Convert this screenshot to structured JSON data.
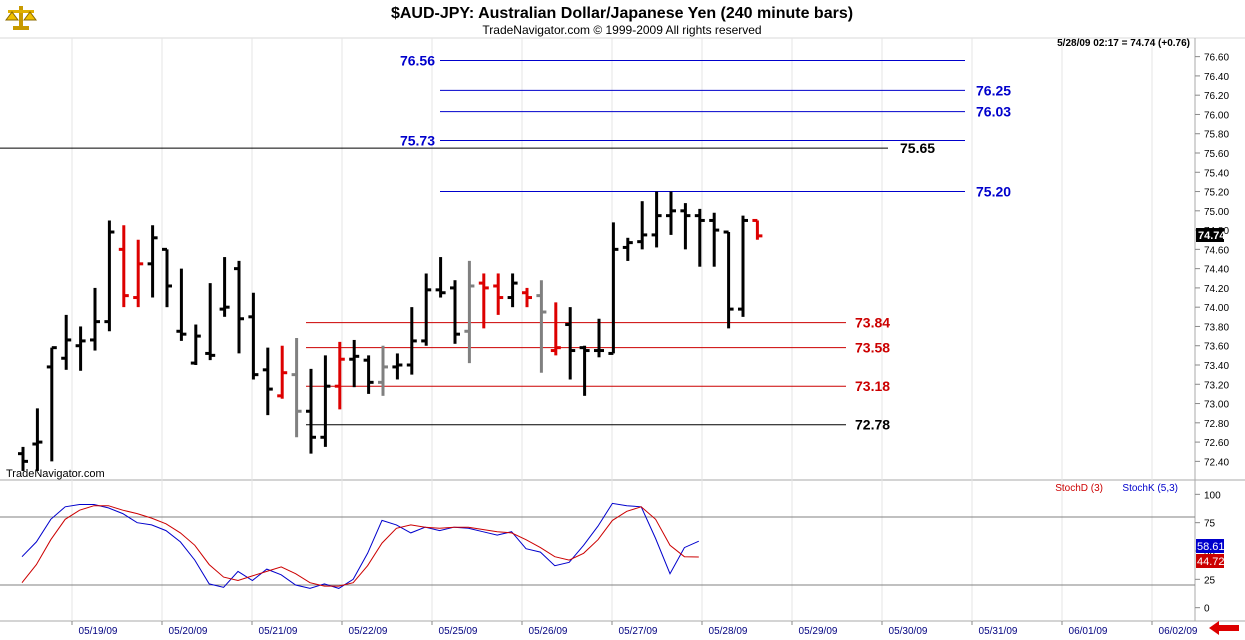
{
  "title": "$AUD-JPY:  Australian Dollar/Japanese Yen  (240 minute bars)",
  "copyright": "TradeNavigator.com © 1999-2009 All rights reserved",
  "watermark": "TradeNavigator.com",
  "last_quote": "5/28/09 02:17 = 74.74 (+0.76)",
  "price_tag": "74.74",
  "colors": {
    "up": "#000000",
    "down": "#dd0000",
    "neutral": "#808080",
    "level_blue": "#0000cc",
    "level_red": "#cc0000",
    "stoch_k": "#0000cc",
    "stoch_d": "#cc0000"
  },
  "chart_data": [
    {
      "type": "ohlc",
      "title": "$AUD-JPY:  Australian Dollar/Japanese Yen  (240 minute bars)",
      "ylim": [
        72.3,
        76.7
      ],
      "y_ticks": [
        76.6,
        76.4,
        76.2,
        76.0,
        75.8,
        75.6,
        75.4,
        75.2,
        75.0,
        74.8,
        74.6,
        74.4,
        74.2,
        74.0,
        73.8,
        73.6,
        73.4,
        73.2,
        73.0,
        72.8,
        72.6,
        72.4
      ],
      "y_tick_labels": [
        "76.60",
        "76.40",
        "76.20",
        "76.00",
        "75.80",
        "75.60",
        "75.40",
        "75.20",
        "75.00",
        "74.80",
        "74.60",
        "74.40",
        "74.20",
        "74.00",
        "73.80",
        "73.60",
        "73.40",
        "73.20",
        "73.00",
        "72.80",
        "72.60",
        "72.40"
      ],
      "x_labels": [
        "05/19/09",
        "05/20/09",
        "05/21/09",
        "05/22/09",
        "05/25/09",
        "05/26/09",
        "05/27/09",
        "05/28/09",
        "05/29/09",
        "05/30/09",
        "05/31/09",
        "06/01/09",
        "06/02/09"
      ],
      "bars": [
        {
          "o": 72.48,
          "h": 72.55,
          "l": 72.3,
          "c": 72.4,
          "d": "up"
        },
        {
          "o": 72.58,
          "h": 72.95,
          "l": 72.3,
          "c": 72.6,
          "d": "up"
        },
        {
          "o": 73.38,
          "h": 73.58,
          "l": 72.4,
          "c": 73.58,
          "d": "up"
        },
        {
          "o": 73.47,
          "h": 73.92,
          "l": 73.35,
          "c": 73.66,
          "d": "up"
        },
        {
          "o": 73.6,
          "h": 73.8,
          "l": 73.34,
          "c": 73.65,
          "d": "up"
        },
        {
          "o": 73.66,
          "h": 74.2,
          "l": 73.55,
          "c": 73.85,
          "d": "up"
        },
        {
          "o": 73.85,
          "h": 74.9,
          "l": 73.75,
          "c": 74.78,
          "d": "up"
        },
        {
          "o": 74.6,
          "h": 74.85,
          "l": 74.0,
          "c": 74.12,
          "d": "down"
        },
        {
          "o": 74.1,
          "h": 74.7,
          "l": 74.0,
          "c": 74.45,
          "d": "down"
        },
        {
          "o": 74.45,
          "h": 74.85,
          "l": 74.1,
          "c": 74.72,
          "d": "up"
        },
        {
          "o": 74.6,
          "h": 74.6,
          "l": 74.0,
          "c": 74.22,
          "d": "up"
        },
        {
          "o": 73.75,
          "h": 74.4,
          "l": 73.65,
          "c": 73.72,
          "d": "up"
        },
        {
          "o": 73.42,
          "h": 73.82,
          "l": 73.4,
          "c": 73.7,
          "d": "up"
        },
        {
          "o": 73.52,
          "h": 74.25,
          "l": 73.45,
          "c": 73.5,
          "d": "up"
        },
        {
          "o": 73.98,
          "h": 74.52,
          "l": 73.9,
          "c": 74.0,
          "d": "up"
        },
        {
          "o": 74.4,
          "h": 74.48,
          "l": 73.52,
          "c": 73.88,
          "d": "up"
        },
        {
          "o": 73.9,
          "h": 74.15,
          "l": 73.25,
          "c": 73.3,
          "d": "up"
        },
        {
          "o": 73.35,
          "h": 73.58,
          "l": 72.88,
          "c": 73.15,
          "d": "up"
        },
        {
          "o": 73.08,
          "h": 73.6,
          "l": 73.05,
          "c": 73.32,
          "d": "down"
        },
        {
          "o": 73.3,
          "h": 73.68,
          "l": 72.65,
          "c": 72.92,
          "d": "neutral"
        },
        {
          "o": 72.92,
          "h": 73.36,
          "l": 72.48,
          "c": 72.65,
          "d": "up"
        },
        {
          "o": 72.65,
          "h": 73.5,
          "l": 72.55,
          "c": 73.18,
          "d": "up"
        },
        {
          "o": 73.18,
          "h": 73.64,
          "l": 72.94,
          "c": 73.46,
          "d": "down"
        },
        {
          "o": 73.46,
          "h": 73.66,
          "l": 73.17,
          "c": 73.49,
          "d": "up"
        },
        {
          "o": 73.45,
          "h": 73.5,
          "l": 73.1,
          "c": 73.22,
          "d": "up"
        },
        {
          "o": 73.22,
          "h": 73.6,
          "l": 73.08,
          "c": 73.38,
          "d": "neutral"
        },
        {
          "o": 73.38,
          "h": 73.52,
          "l": 73.25,
          "c": 73.4,
          "d": "up"
        },
        {
          "o": 73.4,
          "h": 74.0,
          "l": 73.3,
          "c": 73.65,
          "d": "up"
        },
        {
          "o": 73.65,
          "h": 74.35,
          "l": 73.6,
          "c": 74.18,
          "d": "up"
        },
        {
          "o": 74.18,
          "h": 74.52,
          "l": 74.1,
          "c": 74.15,
          "d": "up"
        },
        {
          "o": 74.2,
          "h": 74.28,
          "l": 73.62,
          "c": 73.72,
          "d": "up"
        },
        {
          "o": 73.75,
          "h": 74.48,
          "l": 73.42,
          "c": 74.22,
          "d": "neutral"
        },
        {
          "o": 74.25,
          "h": 74.35,
          "l": 73.78,
          "c": 74.2,
          "d": "down"
        },
        {
          "o": 74.22,
          "h": 74.35,
          "l": 73.92,
          "c": 74.1,
          "d": "down"
        },
        {
          "o": 74.1,
          "h": 74.35,
          "l": 74.0,
          "c": 74.25,
          "d": "up"
        },
        {
          "o": 74.15,
          "h": 74.2,
          "l": 74.0,
          "c": 74.1,
          "d": "down"
        },
        {
          "o": 74.12,
          "h": 74.28,
          "l": 73.32,
          "c": 73.95,
          "d": "neutral"
        },
        {
          "o": 73.55,
          "h": 74.05,
          "l": 73.5,
          "c": 73.58,
          "d": "down"
        },
        {
          "o": 73.82,
          "h": 74.0,
          "l": 73.25,
          "c": 73.55,
          "d": "up"
        },
        {
          "o": 73.58,
          "h": 73.6,
          "l": 73.08,
          "c": 73.55,
          "d": "up"
        },
        {
          "o": 73.55,
          "h": 73.88,
          "l": 73.48,
          "c": 73.55,
          "d": "up"
        },
        {
          "o": 73.52,
          "h": 74.88,
          "l": 73.52,
          "c": 74.6,
          "d": "up"
        },
        {
          "o": 74.62,
          "h": 74.72,
          "l": 74.48,
          "c": 74.67,
          "d": "up"
        },
        {
          "o": 74.68,
          "h": 75.1,
          "l": 74.6,
          "c": 74.75,
          "d": "up"
        },
        {
          "o": 74.75,
          "h": 75.2,
          "l": 74.62,
          "c": 74.95,
          "d": "up"
        },
        {
          "o": 74.95,
          "h": 75.2,
          "l": 74.75,
          "c": 75.0,
          "d": "up"
        },
        {
          "o": 75.0,
          "h": 75.08,
          "l": 74.6,
          "c": 74.95,
          "d": "up"
        },
        {
          "o": 74.95,
          "h": 75.02,
          "l": 74.42,
          "c": 74.9,
          "d": "up"
        },
        {
          "o": 74.9,
          "h": 74.98,
          "l": 74.42,
          "c": 74.8,
          "d": "up"
        },
        {
          "o": 74.78,
          "h": 74.78,
          "l": 73.78,
          "c": 73.98,
          "d": "up"
        },
        {
          "o": 73.98,
          "h": 74.95,
          "l": 73.9,
          "c": 74.9,
          "d": "up"
        },
        {
          "o": 74.9,
          "h": 74.9,
          "l": 74.7,
          "c": 74.74,
          "d": "down"
        }
      ],
      "levels": [
        {
          "value": 76.56,
          "label": "76.56",
          "color": "blue",
          "label_pos": "left"
        },
        {
          "value": 76.25,
          "label": "76.25",
          "color": "blue",
          "label_pos": "right"
        },
        {
          "value": 76.03,
          "label": "76.03",
          "color": "blue",
          "label_pos": "right"
        },
        {
          "value": 75.73,
          "label": "75.73",
          "color": "blue",
          "label_pos": "left"
        },
        {
          "value": 75.65,
          "label": "75.65",
          "color": "black",
          "label_pos": "right"
        },
        {
          "value": 75.2,
          "label": "75.20",
          "color": "blue",
          "label_pos": "right"
        },
        {
          "value": 73.84,
          "label": "73.84",
          "color": "red",
          "label_pos": "right"
        },
        {
          "value": 73.58,
          "label": "73.58",
          "color": "red",
          "label_pos": "right"
        },
        {
          "value": 73.18,
          "label": "73.18",
          "color": "red",
          "label_pos": "right"
        },
        {
          "value": 72.78,
          "label": "72.78",
          "color": "black",
          "label_pos": "right"
        }
      ]
    },
    {
      "type": "line",
      "ylim": [
        -10,
        110
      ],
      "y_ticks": [
        100,
        75,
        50,
        25,
        0
      ],
      "y_tick_labels": [
        "100",
        "75",
        "50",
        "25",
        "0"
      ],
      "reference_lines": [
        80,
        20
      ],
      "series": [
        {
          "name": "StochK (5,3)",
          "color": "blue",
          "values": [
            45,
            58,
            78,
            89,
            91,
            91,
            88,
            83,
            75,
            73,
            68,
            58,
            42,
            21,
            18,
            32,
            24,
            34,
            29,
            20,
            17,
            21,
            17,
            25,
            48,
            77,
            73,
            66,
            71,
            68,
            71,
            70,
            67,
            64,
            67,
            52,
            49,
            37,
            40,
            55,
            72,
            92,
            90,
            89,
            61,
            30,
            53,
            58.61
          ]
        },
        {
          "name": "StochD (3)",
          "color": "red",
          "values": [
            22,
            38,
            60,
            78,
            86,
            90,
            90,
            86,
            83,
            79,
            74,
            66,
            55,
            38,
            27,
            24,
            28,
            32,
            36,
            30,
            22,
            19,
            19,
            22,
            37,
            57,
            70,
            73,
            71,
            70,
            71,
            71,
            69,
            67,
            66,
            60,
            53,
            45,
            42,
            48,
            60,
            77,
            85,
            89,
            78,
            55,
            45,
            44.72
          ]
        }
      ]
    }
  ],
  "stoch_labels": {
    "k": "StochK (5,3)",
    "d": "StochD (3)"
  },
  "stoch_values": {
    "k": "58.61",
    "d": "44.72"
  }
}
